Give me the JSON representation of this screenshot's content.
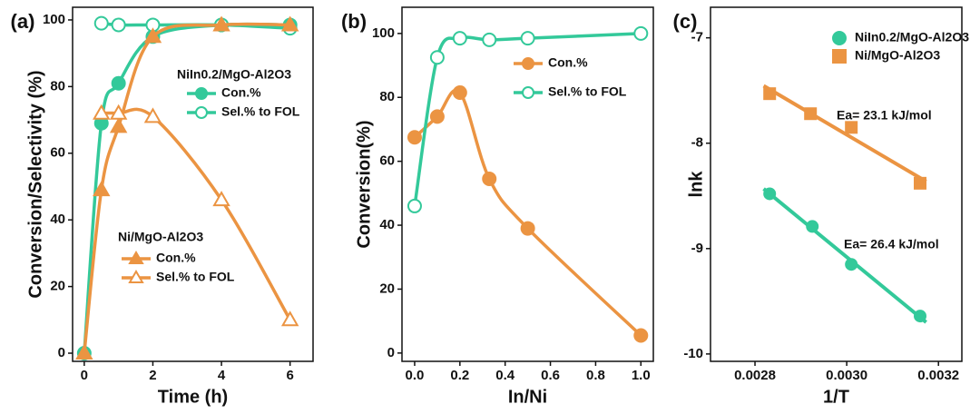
{
  "chart_data": [
    {
      "type": "line",
      "label": "(a)",
      "x_label": "Time (h)",
      "y_label": "Conversion/Selectivity (%)",
      "x": [
        0,
        0.5,
        1,
        2,
        4,
        6
      ],
      "xlim": [
        -0.34,
        6.67
      ],
      "xticks": [
        0,
        2,
        4,
        6
      ],
      "ylim": [
        -2.45,
        103.8
      ],
      "yticks": [
        0,
        20,
        40,
        60,
        80,
        100
      ],
      "groups": [
        {
          "title": "NiIn0.2/MgO-Al2O3",
          "series": [
            {
              "name": "Con.%",
              "color": "#33c99a",
              "marker": "circle",
              "filled": true,
              "values": [
                0,
                69,
                81,
                95,
                98.5,
                98.5
              ]
            },
            {
              "name": "Sel.% to FOL",
              "color": "#33c99a",
              "marker": "circle",
              "filled": false,
              "values": [
                null,
                99,
                98.5,
                98.5,
                98.5,
                97.5
              ]
            }
          ]
        },
        {
          "title": "Ni/MgO-Al2O3",
          "series": [
            {
              "name": "Con.%",
              "color": "#eb9442",
              "marker": "triangle",
              "filled": true,
              "values": [
                0,
                49,
                68,
                95,
                98.5,
                98.5
              ]
            },
            {
              "name": "Sel.% to FOL",
              "color": "#eb9442",
              "marker": "triangle",
              "filled": false,
              "values": [
                null,
                72,
                72,
                71,
                46,
                10
              ]
            }
          ]
        }
      ]
    },
    {
      "type": "line",
      "label": "(b)",
      "x_label": "In/Ni",
      "y_label": "Conversion(%)",
      "x": [
        0,
        0.1,
        0.2,
        0.33,
        0.5,
        1.0
      ],
      "xlim": [
        -0.056,
        1.055
      ],
      "xticks": [
        {
          "value": 0,
          "label": "0.0"
        },
        {
          "value": 0.2,
          "label": "0.2"
        },
        {
          "value": 0.4,
          "label": "0.4"
        },
        {
          "value": 0.6,
          "label": "0.6"
        },
        {
          "value": 0.8,
          "label": "0.8"
        },
        {
          "value": 1,
          "label": "1.0"
        }
      ],
      "ylim": [
        -2.6,
        108.2
      ],
      "yticks": [
        0,
        20,
        40,
        60,
        80,
        100
      ],
      "groups": [
        {
          "series": [
            {
              "name": "Con.%",
              "color": "#eb9442",
              "marker": "circle",
              "filled": true,
              "values": [
                67.5,
                74,
                81.5,
                54.5,
                39,
                5.5
              ]
            },
            {
              "name": "Sel.% to FOL",
              "color": "#33c99a",
              "marker": "circle",
              "filled": false,
              "values": [
                46,
                92.5,
                98.5,
                98,
                98.5,
                100
              ]
            }
          ]
        }
      ]
    },
    {
      "type": "scatter",
      "label": "(c)",
      "x_label": "1/T",
      "y_label": "lnk",
      "xlim": [
        0.002703,
        0.003251
      ],
      "xticks": [
        0.0028,
        {
          "value": 0.003,
          "label": "0.0030"
        },
        0.0032
      ],
      "ylim": [
        -10.07,
        -6.71
      ],
      "yticks": [
        -7,
        -8,
        -9,
        -10
      ],
      "fit": true,
      "annotations": [
        "Ea= 23.1 kJ/mol",
        "Ea= 26.4 kJ/mol"
      ],
      "series": [
        {
          "name": "NiIn0.2/MgO-Al2O3",
          "color": "#33c99a",
          "marker": "circle",
          "x": [
            0.002832,
            0.002925,
            0.00301,
            0.00316
          ],
          "values": [
            -8.48,
            -8.79,
            -9.15,
            -9.64
          ]
        },
        {
          "name": "Ni/MgO-Al2O3",
          "color": "#eb9442",
          "marker": "square",
          "x": [
            0.002832,
            0.002921,
            0.00301,
            0.00316
          ],
          "values": [
            -7.53,
            -7.72,
            -7.85,
            -8.38
          ]
        }
      ]
    }
  ]
}
